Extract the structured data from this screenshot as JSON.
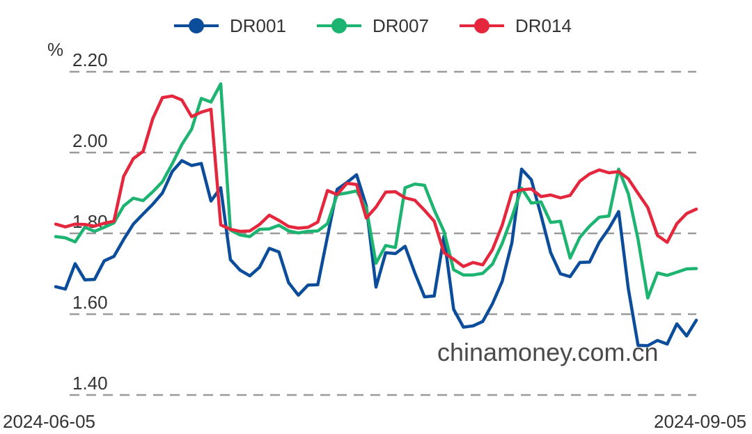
{
  "chart_data": {
    "type": "line",
    "ylabel": "%",
    "ylim": [
      1.4,
      2.2
    ],
    "yticks": [
      "2.20",
      "2.00",
      "1.80",
      "1.60",
      "1.40"
    ],
    "x_start_label": "2024-06-05",
    "x_end_label": "2024-09-05",
    "grid": true,
    "legend_position": "top-center",
    "watermark": "chinamoney.com.cn",
    "series": [
      {
        "name": "DR001",
        "color": "#0b4d9a",
        "values": [
          1.668,
          1.662,
          1.725,
          1.685,
          1.686,
          1.732,
          1.743,
          1.785,
          1.823,
          1.848,
          1.872,
          1.9,
          1.953,
          1.98,
          1.968,
          1.973,
          1.88,
          1.913,
          1.735,
          1.709,
          1.695,
          1.716,
          1.763,
          1.754,
          1.678,
          1.647,
          1.672,
          1.673,
          1.792,
          1.909,
          1.926,
          1.945,
          1.868,
          1.667,
          1.752,
          1.75,
          1.768,
          1.702,
          1.643,
          1.645,
          1.793,
          1.612,
          1.568,
          1.571,
          1.582,
          1.626,
          1.681,
          1.777,
          1.959,
          1.933,
          1.845,
          1.752,
          1.7,
          1.693,
          1.728,
          1.729,
          1.778,
          1.812,
          1.854,
          1.663,
          1.523,
          1.522,
          1.535,
          1.526,
          1.576,
          1.546,
          1.585
        ]
      },
      {
        "name": "DR007",
        "color": "#1db370",
        "values": [
          1.792,
          1.789,
          1.779,
          1.815,
          1.805,
          1.815,
          1.826,
          1.868,
          1.887,
          1.881,
          1.903,
          1.928,
          1.972,
          2.02,
          2.058,
          2.134,
          2.125,
          2.17,
          1.808,
          1.796,
          1.792,
          1.81,
          1.811,
          1.82,
          1.806,
          1.801,
          1.805,
          1.806,
          1.824,
          1.896,
          1.9,
          1.905,
          1.863,
          1.726,
          1.77,
          1.765,
          1.913,
          1.922,
          1.919,
          1.858,
          1.805,
          1.71,
          1.697,
          1.697,
          1.701,
          1.724,
          1.775,
          1.84,
          1.912,
          1.875,
          1.878,
          1.827,
          1.83,
          1.739,
          1.79,
          1.818,
          1.84,
          1.843,
          1.959,
          1.898,
          1.785,
          1.64,
          1.702,
          1.696,
          1.704,
          1.712,
          1.713
        ]
      },
      {
        "name": "DR014",
        "color": "#e4273d",
        "values": [
          1.823,
          1.816,
          1.823,
          1.822,
          1.818,
          1.825,
          1.83,
          1.941,
          1.985,
          2.003,
          2.084,
          2.136,
          2.14,
          2.13,
          2.089,
          2.1,
          2.107,
          1.821,
          1.81,
          1.805,
          1.806,
          1.822,
          1.845,
          1.832,
          1.817,
          1.813,
          1.815,
          1.828,
          1.906,
          1.896,
          1.924,
          1.921,
          1.838,
          1.865,
          1.902,
          1.903,
          1.888,
          1.882,
          1.857,
          1.83,
          1.752,
          1.736,
          1.718,
          1.728,
          1.722,
          1.76,
          1.82,
          1.901,
          1.908,
          1.91,
          1.891,
          1.895,
          1.888,
          1.894,
          1.929,
          1.947,
          1.957,
          1.95,
          1.953,
          1.935,
          1.899,
          1.864,
          1.795,
          1.778,
          1.824,
          1.849,
          1.86
        ]
      }
    ]
  }
}
